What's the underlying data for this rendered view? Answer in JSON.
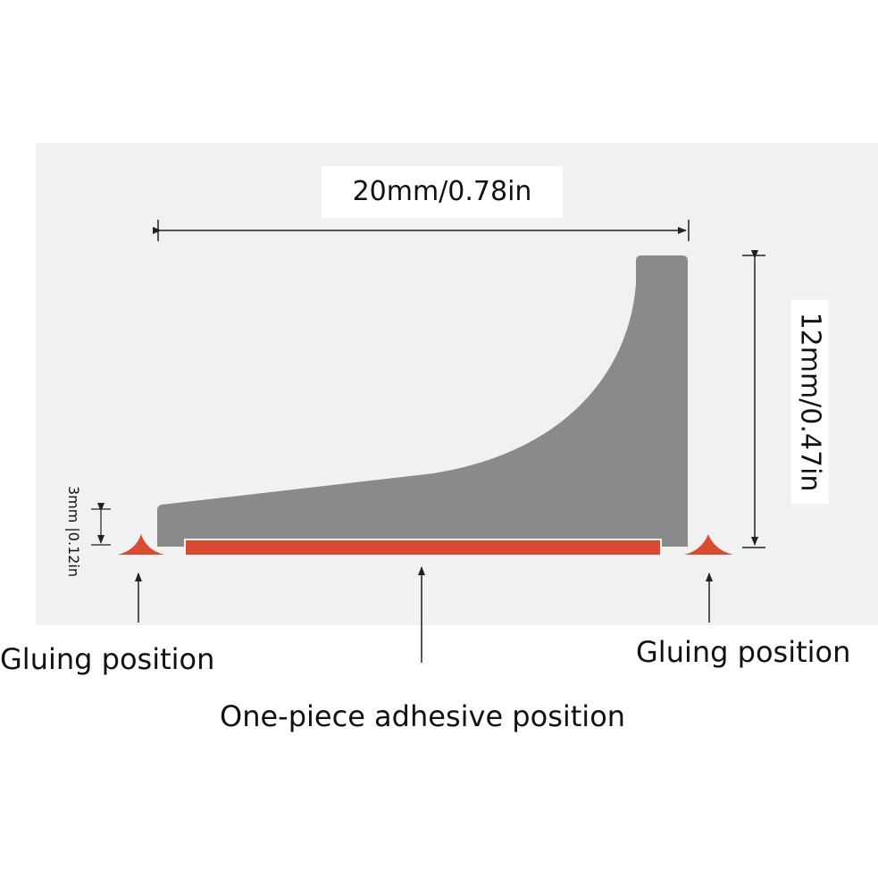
{
  "dimensions": {
    "width": "20mm/0.78in",
    "height": "12mm/0.47in",
    "thickness": "3mm |0.12in"
  },
  "labels": {
    "gluing_left": "Gluing position",
    "gluing_right": "Gluing position",
    "adhesive": "One-piece adhesive position"
  },
  "colors": {
    "profile": "#8a8a8b",
    "adhesive": "#d94b31",
    "line": "#222222",
    "panel": "#f1f1f1"
  }
}
